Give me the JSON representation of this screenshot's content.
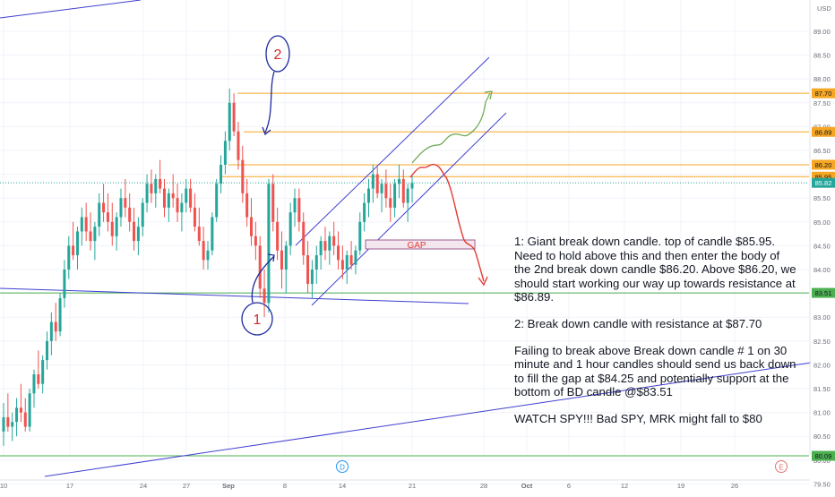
{
  "chart_data": {
    "type": "candlestick",
    "title": "",
    "currency_label": "USD",
    "y_axis": {
      "min": 79.3,
      "max": 89.6,
      "ticks": [
        "89.00",
        "88.50",
        "88.00",
        "87.50",
        "87.00",
        "86.50",
        "86.00",
        "85.50",
        "85.00",
        "84.50",
        "84.00",
        "83.50",
        "83.00",
        "82.50",
        "82.00",
        "81.50",
        "81.00",
        "80.50",
        "80.00",
        "79.50"
      ],
      "tick_values": [
        89.0,
        88.5,
        88.0,
        87.5,
        87.0,
        86.5,
        86.0,
        85.5,
        85.0,
        84.5,
        84.0,
        83.5,
        83.0,
        82.5,
        82.0,
        81.5,
        81.0,
        80.5,
        80.0,
        79.5
      ]
    },
    "x_axis": {
      "ticks": [
        "10",
        "17",
        "24",
        "27",
        "Sep",
        "8",
        "14",
        "21",
        "28",
        "Oct",
        "6",
        "12",
        "19",
        "26"
      ]
    },
    "horizontal_levels": [
      {
        "label": "87.70",
        "value": 87.7,
        "color": "#f5a623"
      },
      {
        "label": "86.89",
        "value": 86.89,
        "color": "#f5a623"
      },
      {
        "label": "86.20",
        "value": 86.2,
        "color": "#f5a623"
      },
      {
        "label": "85.95",
        "value": 85.95,
        "color": "#f5a623"
      },
      {
        "label": "83.51",
        "value": 83.51,
        "color": "#4caf50"
      },
      {
        "label": "80.09",
        "value": 80.09,
        "color": "#4caf50"
      }
    ],
    "last_price": {
      "label": "85.82",
      "value": 85.82,
      "color": "#26a69a"
    },
    "gap_box": {
      "label": "GAP",
      "top": 84.45,
      "bottom": 84.25
    },
    "marks": {
      "dividend": "D",
      "earnings": "E"
    },
    "annotations": {
      "first_candle": "1",
      "second_candle": "2"
    },
    "candles": [
      [
        80.6,
        81.2,
        80.3,
        80.9
      ],
      [
        80.9,
        81.4,
        80.6,
        80.7
      ],
      [
        80.7,
        81.0,
        80.4,
        80.8
      ],
      [
        80.8,
        81.3,
        80.5,
        81.1
      ],
      [
        81.1,
        81.6,
        80.8,
        81.0
      ],
      [
        81.0,
        81.3,
        80.6,
        80.7
      ],
      [
        80.7,
        81.5,
        80.6,
        81.4
      ],
      [
        81.4,
        81.9,
        81.1,
        81.8
      ],
      [
        81.8,
        82.3,
        81.5,
        81.6
      ],
      [
        81.6,
        82.2,
        81.4,
        82.1
      ],
      [
        82.1,
        82.7,
        81.9,
        82.5
      ],
      [
        82.5,
        83.1,
        82.2,
        82.9
      ],
      [
        82.9,
        83.3,
        82.5,
        82.7
      ],
      [
        82.7,
        83.5,
        82.6,
        83.4
      ],
      [
        83.4,
        84.2,
        83.2,
        84.0
      ],
      [
        84.0,
        84.7,
        83.8,
        84.5
      ],
      [
        84.5,
        85.0,
        84.2,
        84.3
      ],
      [
        84.3,
        84.9,
        84.0,
        84.8
      ],
      [
        84.8,
        85.3,
        84.5,
        85.1
      ],
      [
        85.1,
        85.4,
        84.6,
        84.8
      ],
      [
        84.8,
        85.2,
        84.4,
        84.6
      ],
      [
        84.6,
        85.0,
        84.2,
        84.9
      ],
      [
        84.9,
        85.6,
        84.7,
        85.4
      ],
      [
        85.4,
        85.8,
        85.0,
        85.2
      ],
      [
        85.2,
        85.6,
        84.8,
        85.0
      ],
      [
        85.0,
        85.4,
        84.5,
        84.7
      ],
      [
        84.7,
        85.2,
        84.4,
        85.1
      ],
      [
        85.1,
        85.7,
        84.9,
        85.5
      ],
      [
        85.5,
        85.9,
        85.1,
        85.3
      ],
      [
        85.3,
        85.6,
        84.8,
        85.0
      ],
      [
        85.0,
        85.3,
        84.4,
        84.6
      ],
      [
        84.6,
        85.1,
        84.3,
        84.9
      ],
      [
        84.9,
        85.5,
        84.7,
        85.4
      ],
      [
        85.4,
        86.0,
        85.2,
        85.8
      ],
      [
        85.8,
        86.1,
        85.4,
        85.6
      ],
      [
        85.6,
        86.0,
        85.3,
        85.9
      ],
      [
        85.9,
        86.3,
        85.6,
        85.7
      ],
      [
        85.7,
        85.9,
        85.1,
        85.3
      ],
      [
        85.3,
        85.7,
        85.0,
        85.6
      ],
      [
        85.6,
        86.0,
        85.3,
        85.5
      ],
      [
        85.5,
        85.8,
        85.0,
        85.2
      ],
      [
        85.2,
        85.6,
        84.8,
        85.4
      ],
      [
        85.4,
        85.9,
        85.2,
        85.7
      ],
      [
        85.7,
        85.9,
        85.2,
        85.3
      ],
      [
        85.3,
        85.6,
        84.8,
        84.9
      ],
      [
        84.9,
        85.3,
        84.5,
        84.6
      ],
      [
        84.6,
        84.9,
        84.0,
        84.2
      ],
      [
        84.2,
        84.6,
        84.0,
        84.4
      ],
      [
        84.4,
        85.2,
        84.3,
        85.1
      ],
      [
        85.1,
        85.9,
        85.0,
        85.8
      ],
      [
        85.8,
        86.4,
        85.6,
        86.2
      ],
      [
        86.2,
        86.9,
        86.0,
        86.7
      ],
      [
        86.7,
        87.8,
        86.5,
        87.5
      ],
      [
        87.5,
        87.7,
        86.8,
        86.9
      ],
      [
        86.9,
        87.1,
        86.1,
        86.3
      ],
      [
        86.3,
        86.6,
        85.4,
        85.6
      ],
      [
        85.6,
        85.9,
        84.9,
        85.1
      ],
      [
        85.1,
        85.5,
        84.5,
        84.7
      ],
      [
        84.7,
        85.0,
        84.2,
        84.5
      ],
      [
        84.5,
        84.7,
        83.4,
        83.6
      ],
      [
        83.6,
        84.0,
        83.0,
        83.3
      ],
      [
        83.3,
        85.9,
        83.1,
        85.8
      ],
      [
        85.8,
        86.0,
        84.8,
        85.0
      ],
      [
        85.0,
        85.3,
        84.2,
        84.4
      ],
      [
        84.4,
        84.8,
        83.6,
        84.0
      ],
      [
        84.0,
        84.6,
        83.5,
        84.5
      ],
      [
        84.5,
        85.4,
        84.3,
        85.2
      ],
      [
        85.2,
        85.7,
        84.9,
        85.5
      ],
      [
        85.5,
        85.7,
        84.8,
        85.0
      ],
      [
        85.0,
        85.2,
        84.1,
        84.3
      ],
      [
        84.3,
        84.6,
        83.5,
        83.7
      ],
      [
        83.7,
        84.2,
        83.4,
        84.0
      ],
      [
        84.0,
        84.5,
        83.7,
        84.3
      ],
      [
        84.3,
        84.7,
        84.0,
        84.6
      ],
      [
        84.6,
        84.9,
        84.2,
        84.4
      ],
      [
        84.4,
        84.8,
        84.1,
        84.7
      ],
      [
        84.7,
        85.0,
        84.3,
        84.5
      ],
      [
        84.5,
        84.8,
        84.0,
        84.2
      ],
      [
        84.2,
        84.5,
        83.8,
        84.0
      ],
      [
        84.0,
        84.4,
        83.7,
        84.3
      ],
      [
        84.3,
        84.6,
        84.0,
        84.1
      ],
      [
        84.1,
        84.5,
        83.9,
        84.4
      ],
      [
        84.4,
        85.2,
        84.3,
        85.0
      ],
      [
        85.0,
        85.6,
        84.8,
        85.4
      ],
      [
        85.4,
        85.9,
        85.1,
        85.7
      ],
      [
        85.7,
        86.2,
        85.4,
        86.0
      ],
      [
        86.0,
        86.2,
        85.5,
        85.6
      ],
      [
        85.6,
        85.9,
        85.2,
        85.8
      ],
      [
        85.8,
        86.1,
        85.3,
        85.5
      ],
      [
        85.5,
        85.8,
        85.0,
        85.3
      ],
      [
        85.3,
        85.9,
        85.1,
        85.8
      ],
      [
        85.8,
        86.2,
        85.5,
        85.9
      ],
      [
        85.9,
        86.1,
        85.3,
        85.4
      ],
      [
        85.4,
        85.8,
        85.0,
        85.7
      ],
      [
        85.7,
        86.0,
        85.4,
        85.82
      ]
    ]
  },
  "notes": {
    "p1": "1: Giant break down candle. top of candle $85.95. Need to hold above this and then enter the body of the 2nd break down candle $86.20. Above $86.20, we should start working our way up towards resistance at $86.89.",
    "p2": "2: Break down candle with resistance at $87.70",
    "p3": "Failing to break above Break down candle # 1 on 30 minute and 1 hour candles should send us back down to fill the gap at $84.25 and potentially support at the bottom of BD candle @$83.51",
    "p4": "WATCH SPY!!! Bad SPY, MRK might fall to $80"
  },
  "colors": {
    "up": "#26a69a",
    "down": "#ef5350",
    "trend": "#3f3fd0",
    "grid": "#f0f3fa",
    "axis_text": "#6a6d78"
  }
}
